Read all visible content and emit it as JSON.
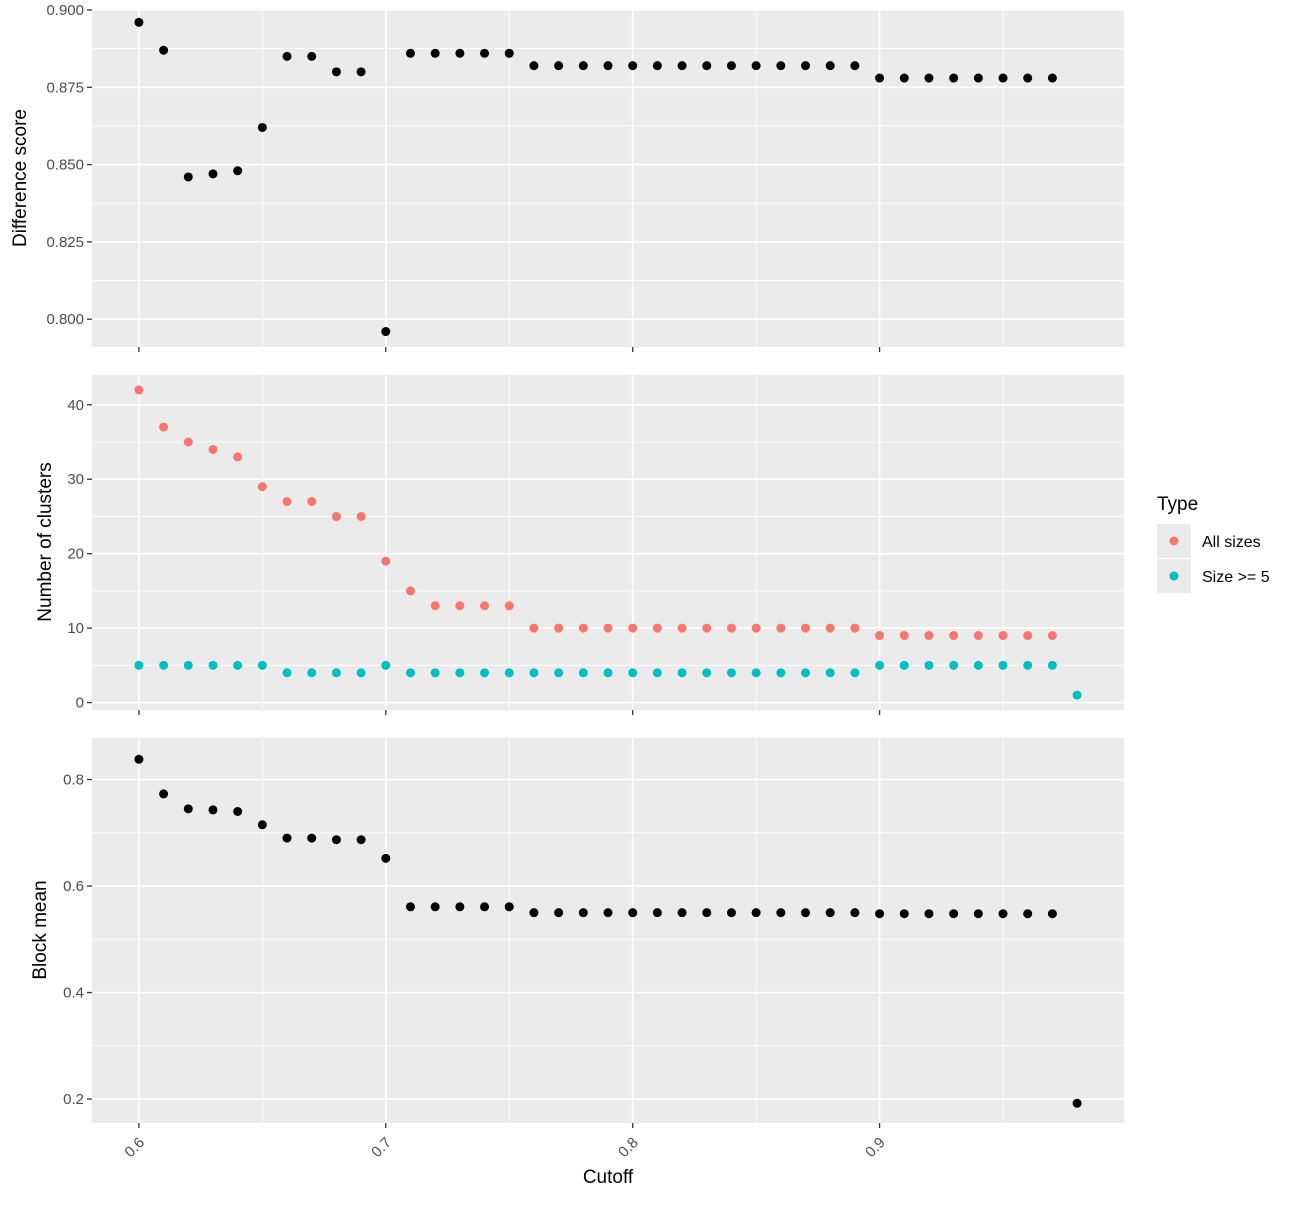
{
  "chart_data": [
    {
      "type": "scatter",
      "panel": "top",
      "xlabel": "Cutoff",
      "ylabel": "Difference score",
      "xlim": [
        0.581,
        0.999
      ],
      "ylim": [
        0.791,
        0.9
      ],
      "x_ticks": [
        0.6,
        0.7,
        0.8,
        0.9
      ],
      "y_ticks": [
        0.8,
        0.825,
        0.85,
        0.875,
        0.9
      ],
      "y_tick_labels": [
        "0.800",
        "0.825",
        "0.850",
        "0.875",
        "0.900"
      ],
      "grid": true,
      "series": [
        {
          "color": "#000000",
          "x": [
            0.6,
            0.61,
            0.62,
            0.63,
            0.64,
            0.65,
            0.66,
            0.67,
            0.68,
            0.69,
            0.7,
            0.71,
            0.72,
            0.73,
            0.74,
            0.75,
            0.76,
            0.77,
            0.78,
            0.79,
            0.8,
            0.81,
            0.82,
            0.83,
            0.84,
            0.85,
            0.86,
            0.87,
            0.88,
            0.89,
            0.9,
            0.91,
            0.92,
            0.93,
            0.94,
            0.95,
            0.96,
            0.97
          ],
          "y": [
            0.896,
            0.887,
            0.846,
            0.847,
            0.848,
            0.862,
            0.885,
            0.885,
            0.88,
            0.88,
            0.796,
            0.886,
            0.886,
            0.886,
            0.886,
            0.886,
            0.882,
            0.882,
            0.882,
            0.882,
            0.882,
            0.882,
            0.882,
            0.882,
            0.882,
            0.882,
            0.882,
            0.882,
            0.882,
            0.882,
            0.878,
            0.878,
            0.878,
            0.878,
            0.878,
            0.878,
            0.878,
            0.878
          ]
        }
      ]
    },
    {
      "type": "scatter",
      "panel": "middle",
      "xlabel": "Cutoff",
      "ylabel": "Number of clusters",
      "xlim": [
        0.581,
        0.999
      ],
      "ylim": [
        -1,
        44
      ],
      "x_ticks": [
        0.6,
        0.7,
        0.8,
        0.9
      ],
      "y_ticks": [
        0,
        10,
        20,
        30,
        40
      ],
      "y_tick_labels": [
        "0",
        "10",
        "20",
        "30",
        "40"
      ],
      "grid": true,
      "legend": {
        "title": "Type",
        "placement": "right",
        "entries": [
          "All sizes",
          "Size >= 5"
        ]
      },
      "series": [
        {
          "name": "All sizes",
          "color": "#F8766D",
          "x": [
            0.6,
            0.61,
            0.62,
            0.63,
            0.64,
            0.65,
            0.66,
            0.67,
            0.68,
            0.69,
            0.7,
            0.71,
            0.72,
            0.73,
            0.74,
            0.75,
            0.76,
            0.77,
            0.78,
            0.79,
            0.8,
            0.81,
            0.82,
            0.83,
            0.84,
            0.85,
            0.86,
            0.87,
            0.88,
            0.89,
            0.9,
            0.91,
            0.92,
            0.93,
            0.94,
            0.95,
            0.96,
            0.97
          ],
          "y": [
            42,
            37,
            35,
            34,
            33,
            29,
            27,
            27,
            25,
            25,
            19,
            15,
            13,
            13,
            13,
            13,
            10,
            10,
            10,
            10,
            10,
            10,
            10,
            10,
            10,
            10,
            10,
            10,
            10,
            10,
            9,
            9,
            9,
            9,
            9,
            9,
            9,
            9
          ]
        },
        {
          "name": "Size >= 5",
          "color": "#00BFC4",
          "x": [
            0.6,
            0.61,
            0.62,
            0.63,
            0.64,
            0.65,
            0.66,
            0.67,
            0.68,
            0.69,
            0.7,
            0.71,
            0.72,
            0.73,
            0.74,
            0.75,
            0.76,
            0.77,
            0.78,
            0.79,
            0.8,
            0.81,
            0.82,
            0.83,
            0.84,
            0.85,
            0.86,
            0.87,
            0.88,
            0.89,
            0.9,
            0.91,
            0.92,
            0.93,
            0.94,
            0.95,
            0.96,
            0.97,
            0.98
          ],
          "y": [
            5,
            5,
            5,
            5,
            5,
            5,
            4,
            4,
            4,
            4,
            5,
            4,
            4,
            4,
            4,
            4,
            4,
            4,
            4,
            4,
            4,
            4,
            4,
            4,
            4,
            4,
            4,
            4,
            4,
            4,
            5,
            5,
            5,
            5,
            5,
            5,
            5,
            5,
            1
          ]
        }
      ]
    },
    {
      "type": "scatter",
      "panel": "bottom",
      "xlabel": "Cutoff",
      "ylabel": "Block mean",
      "xlim": [
        0.581,
        0.999
      ],
      "ylim": [
        0.155,
        0.878
      ],
      "x_ticks": [
        0.6,
        0.7,
        0.8,
        0.9
      ],
      "x_tick_labels": [
        "0.6",
        "0.7",
        "0.8",
        "0.9"
      ],
      "y_ticks": [
        0.2,
        0.4,
        0.6,
        0.8
      ],
      "y_tick_labels": [
        "0.2",
        "0.4",
        "0.6",
        "0.8"
      ],
      "grid": true,
      "series": [
        {
          "color": "#000000",
          "x": [
            0.6,
            0.61,
            0.62,
            0.63,
            0.64,
            0.65,
            0.66,
            0.67,
            0.68,
            0.69,
            0.7,
            0.71,
            0.72,
            0.73,
            0.74,
            0.75,
            0.76,
            0.77,
            0.78,
            0.79,
            0.8,
            0.81,
            0.82,
            0.83,
            0.84,
            0.85,
            0.86,
            0.87,
            0.88,
            0.89,
            0.9,
            0.91,
            0.92,
            0.93,
            0.94,
            0.95,
            0.96,
            0.97,
            0.98
          ],
          "y": [
            0.838,
            0.773,
            0.745,
            0.743,
            0.74,
            0.715,
            0.69,
            0.69,
            0.687,
            0.687,
            0.652,
            0.561,
            0.561,
            0.561,
            0.561,
            0.561,
            0.55,
            0.55,
            0.55,
            0.55,
            0.55,
            0.55,
            0.55,
            0.55,
            0.55,
            0.55,
            0.55,
            0.55,
            0.55,
            0.55,
            0.548,
            0.548,
            0.548,
            0.548,
            0.548,
            0.548,
            0.548,
            0.548,
            0.192
          ]
        }
      ]
    }
  ]
}
